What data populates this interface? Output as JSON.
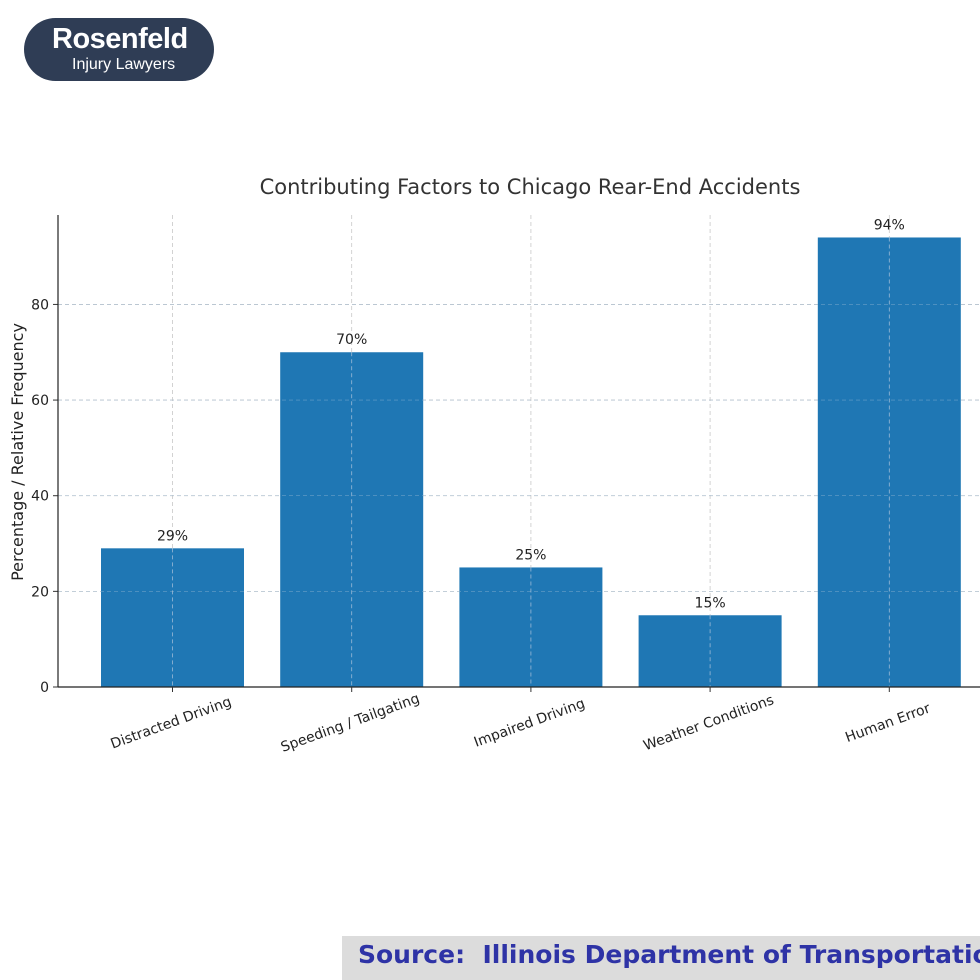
{
  "logo": {
    "brand": "Rosenfeld",
    "tagline": "Injury Lawyers",
    "color": "#2f3d55"
  },
  "source": {
    "text": "Source:  Illinois Department of Transportation",
    "text_color": "#2e33a6",
    "background": "#dcdcdc"
  },
  "chart_data": {
    "type": "bar",
    "title": "Contributing Factors to Chicago Rear-End Accidents",
    "xlabel": "",
    "ylabel": "Percentage / Relative Frequency",
    "categories": [
      "Distracted Driving",
      "Speeding / Tailgating",
      "Impaired Driving",
      "Weather Conditions",
      "Human Error"
    ],
    "values": [
      29,
      70,
      25,
      15,
      94
    ],
    "data_labels": [
      "29%",
      "70%",
      "25%",
      "15%",
      "94%"
    ],
    "yticks": [
      0,
      20,
      40,
      60,
      80
    ],
    "ylim": [
      0,
      98.7
    ],
    "grid": true,
    "bar_color": "#1f77b4"
  }
}
